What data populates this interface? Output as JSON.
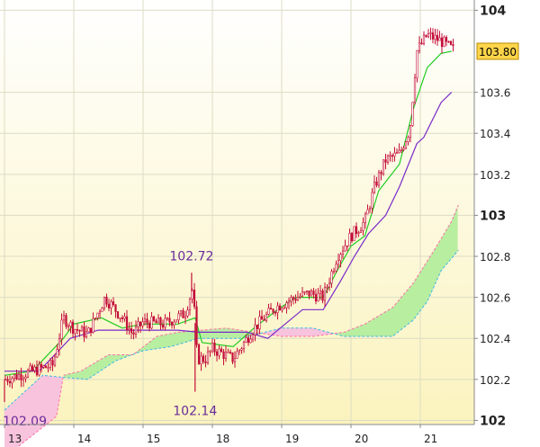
{
  "chart_data": {
    "type": "candlestick",
    "title": "",
    "xlabel": "",
    "ylabel": "",
    "ylim": [
      101.98,
      104.05
    ],
    "grid": true,
    "legend": "none",
    "x_tick_labels": [
      "13",
      "14",
      "15",
      "18",
      "19",
      "20",
      "21"
    ],
    "x_tick_days": [
      0,
      1,
      2,
      3,
      4,
      5,
      6
    ],
    "y_ticks": [
      {
        "value": 102,
        "label": "102",
        "major": true
      },
      {
        "value": 102.2,
        "label": "102.2",
        "major": false
      },
      {
        "value": 102.4,
        "label": "102.4",
        "major": false
      },
      {
        "value": 102.6,
        "label": "102.6",
        "major": false
      },
      {
        "value": 102.8,
        "label": "102.8",
        "major": false
      },
      {
        "value": 103,
        "label": "103",
        "major": true
      },
      {
        "value": 103.2,
        "label": "103.2",
        "major": false
      },
      {
        "value": 103.4,
        "label": "103.4",
        "major": false
      },
      {
        "value": 103.6,
        "label": "103.6",
        "major": false
      },
      {
        "value": 104,
        "label": "104",
        "major": true
      }
    ],
    "last_price": {
      "value": 103.8,
      "label": "103.80"
    },
    "annotations": [
      {
        "text": "102.72",
        "day": 2.7,
        "value": 102.72,
        "position": "above"
      },
      {
        "text": "102.14",
        "day": 2.75,
        "value": 102.14,
        "position": "below"
      },
      {
        "text": "102.09",
        "day": 0.0,
        "value": 102.09,
        "position": "below"
      }
    ],
    "price_path": [
      [
        0.0,
        102.2
      ],
      [
        0.3,
        102.23
      ],
      [
        0.7,
        102.27
      ],
      [
        0.85,
        102.5
      ],
      [
        1.0,
        102.45
      ],
      [
        1.2,
        102.42
      ],
      [
        1.45,
        102.6
      ],
      [
        1.7,
        102.5
      ],
      [
        1.85,
        102.42
      ],
      [
        2.0,
        102.48
      ],
      [
        2.3,
        102.47
      ],
      [
        2.6,
        102.52
      ],
      [
        2.72,
        102.65
      ],
      [
        2.78,
        102.3
      ],
      [
        2.9,
        102.3
      ],
      [
        3.0,
        102.35
      ],
      [
        3.3,
        102.3
      ],
      [
        3.6,
        102.45
      ],
      [
        3.9,
        102.55
      ],
      [
        4.2,
        102.6
      ],
      [
        4.4,
        102.62
      ],
      [
        4.6,
        102.6
      ],
      [
        4.8,
        102.8
      ],
      [
        5.0,
        102.9
      ],
      [
        5.2,
        102.97
      ],
      [
        5.35,
        103.15
      ],
      [
        5.5,
        103.27
      ],
      [
        5.7,
        103.3
      ],
      [
        5.85,
        103.42
      ],
      [
        5.95,
        103.8
      ],
      [
        6.1,
        103.88
      ],
      [
        6.3,
        103.85
      ],
      [
        6.5,
        103.8
      ]
    ],
    "series": [
      {
        "name": "",
        "color": "#22cc22",
        "points": [
          [
            0.0,
            102.22
          ],
          [
            0.4,
            102.24
          ],
          [
            0.85,
            102.4
          ],
          [
            1.0,
            102.47
          ],
          [
            1.4,
            102.5
          ],
          [
            1.7,
            102.45
          ],
          [
            2.0,
            102.47
          ],
          [
            2.5,
            102.47
          ],
          [
            2.75,
            102.5
          ],
          [
            2.85,
            102.38
          ],
          [
            3.3,
            102.36
          ],
          [
            3.6,
            102.45
          ],
          [
            3.9,
            102.53
          ],
          [
            4.2,
            102.6
          ],
          [
            4.6,
            102.6
          ],
          [
            4.8,
            102.73
          ],
          [
            5.0,
            102.85
          ],
          [
            5.2,
            102.9
          ],
          [
            5.4,
            103.12
          ],
          [
            5.7,
            103.25
          ],
          [
            5.9,
            103.52
          ],
          [
            6.1,
            103.72
          ],
          [
            6.3,
            103.79
          ],
          [
            6.45,
            103.8
          ]
        ]
      },
      {
        "name": "",
        "color": "#7a2ac9",
        "points": [
          [
            0.0,
            102.24
          ],
          [
            0.5,
            102.24
          ],
          [
            0.95,
            102.4
          ],
          [
            1.35,
            102.44
          ],
          [
            2.5,
            102.44
          ],
          [
            2.8,
            102.43
          ],
          [
            3.5,
            102.43
          ],
          [
            3.8,
            102.4
          ],
          [
            4.3,
            102.54
          ],
          [
            4.6,
            102.54
          ],
          [
            4.85,
            102.68
          ],
          [
            5.05,
            102.8
          ],
          [
            5.25,
            102.91
          ],
          [
            5.5,
            103.0
          ],
          [
            5.7,
            103.14
          ],
          [
            5.95,
            103.35
          ],
          [
            6.05,
            103.38
          ],
          [
            6.3,
            103.55
          ],
          [
            6.45,
            103.6
          ]
        ]
      }
    ],
    "cloud": {
      "span_a": [
        [
          0.0,
          101.82
        ],
        [
          0.75,
          102.02
        ],
        [
          0.85,
          102.22
        ],
        [
          1.1,
          102.24
        ],
        [
          1.5,
          102.32
        ],
        [
          1.85,
          102.32
        ],
        [
          2.2,
          102.41
        ],
        [
          2.5,
          102.43
        ],
        [
          3.2,
          102.45
        ],
        [
          4.0,
          102.41
        ],
        [
          4.45,
          102.41
        ],
        [
          4.9,
          102.43
        ],
        [
          5.2,
          102.47
        ],
        [
          5.6,
          102.55
        ],
        [
          5.9,
          102.67
        ],
        [
          6.2,
          102.83
        ],
        [
          6.45,
          102.97
        ],
        [
          6.55,
          103.05
        ]
      ],
      "span_b": [
        [
          0.0,
          102.05
        ],
        [
          0.55,
          102.22
        ],
        [
          0.85,
          102.21
        ],
        [
          1.2,
          102.2
        ],
        [
          1.6,
          102.29
        ],
        [
          2.0,
          102.34
        ],
        [
          2.4,
          102.36
        ],
        [
          2.8,
          102.4
        ],
        [
          3.4,
          102.4
        ],
        [
          4.0,
          102.45
        ],
        [
          4.45,
          102.45
        ],
        [
          4.9,
          102.41
        ],
        [
          5.2,
          102.41
        ],
        [
          5.6,
          102.41
        ],
        [
          5.9,
          102.49
        ],
        [
          6.1,
          102.58
        ],
        [
          6.3,
          102.73
        ],
        [
          6.55,
          102.83
        ]
      ],
      "bearish_color": "#f8c4dd",
      "bullish_color": "#b8eea0"
    }
  }
}
